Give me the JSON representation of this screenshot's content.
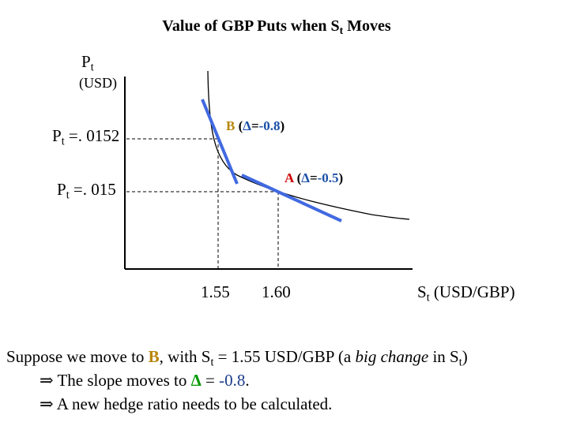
{
  "title": {
    "main": "Value of GBP Puts when S",
    "sub": "t",
    "tail": " Moves"
  },
  "y_axis": {
    "symbol": "P",
    "sub": "t",
    "unit": "(USD)"
  },
  "x_axis": {
    "symbol": "S",
    "sub": "t",
    "unit": " (USD/GBP)"
  },
  "levels": [
    {
      "symbol": "P",
      "sub": "t",
      "text": " =. 0152"
    },
    {
      "symbol": "P",
      "sub": "t",
      "text": " =. 015"
    }
  ],
  "ticks": [
    "1.55",
    "1.60"
  ],
  "points": {
    "B": {
      "name": "B",
      "open": " (",
      "delta": "Δ",
      "eq": "=",
      "value": "-0.8",
      "close": ")"
    },
    "A": {
      "name": "A",
      "open": " (",
      "delta": "Δ",
      "eq": "=",
      "value": "-0.5",
      "close": ")"
    }
  },
  "chart_data": {
    "type": "line",
    "x_ticks": [
      1.55,
      1.6
    ],
    "y_levels": [
      0.0152,
      0.015
    ],
    "points": [
      {
        "label": "B",
        "x": 1.55,
        "y": 0.0152,
        "delta": -0.8
      },
      {
        "label": "A",
        "x": 1.6,
        "y": 0.015,
        "delta": -0.5
      }
    ]
  },
  "notes": {
    "line1": {
      "a": "Suppose we move to ",
      "b": "B",
      "c": ", with S",
      "d": "t",
      "e": " = 1.55 USD/GBP (a ",
      "f": "big change",
      "g": " in S",
      "h": "t",
      "i": ")"
    },
    "line2": {
      "arrow": "⇒",
      "a": " The slope moves to ",
      "delta": "Δ",
      "eq": " = ",
      "value": "-0.8",
      "end": "."
    },
    "line3": {
      "arrow": "⇒",
      "a": " A new hedge ratio needs to be calculated."
    }
  },
  "colors": {
    "tangent": "#4169e1",
    "curve": "#000000",
    "gold": "#b8860b",
    "green": "#009900",
    "blue": "#1a4fa8",
    "red": "#cc0000"
  }
}
